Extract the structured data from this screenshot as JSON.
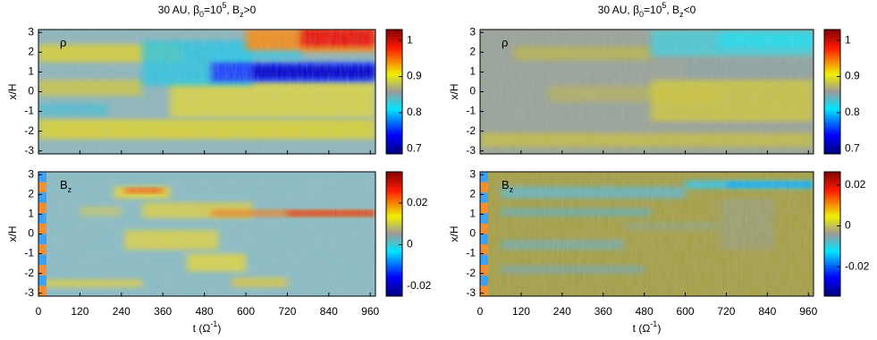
{
  "figure": {
    "xlabel": [
      "t (Ω",
      "-1",
      ")"
    ],
    "ylabel": "x/H",
    "xlim": [
      0,
      975
    ],
    "xticks": [
      0,
      120,
      240,
      360,
      480,
      600,
      720,
      840,
      960
    ],
    "ylim": [
      -3.15,
      3.15
    ],
    "yticks": [
      -3,
      -2,
      -1,
      0,
      1,
      2,
      3
    ],
    "panels": [
      {
        "title": [
          "30 AU, β",
          "0",
          "=10",
          "5",
          ", B",
          "z",
          ">0"
        ],
        "rows": [
          {
            "label": [
              "ρ"
            ],
            "clim": [
              0.686,
              1.03
            ],
            "cticks": [
              0.7,
              0.8,
              0.9,
              1
            ]
          },
          {
            "label": [
              "B",
              "z"
            ],
            "clim": [
              -0.0247,
              0.035
            ],
            "cticks": [
              -0.02,
              0,
              0.02
            ]
          }
        ]
      },
      {
        "title": [
          "30 AU, β",
          "0",
          "=10",
          "5",
          ", B",
          "z",
          "<0"
        ],
        "rows": [
          {
            "label": [
              "ρ"
            ],
            "clim": [
              0.686,
              1.03
            ],
            "cticks": [
              0.7,
              0.8,
              0.9,
              1
            ]
          },
          {
            "label": [
              "B",
              "z"
            ],
            "clim": [
              -0.0344,
              0.0265
            ],
            "cticks": [
              -0.02,
              0,
              0.02
            ]
          }
        ]
      }
    ]
  }
}
